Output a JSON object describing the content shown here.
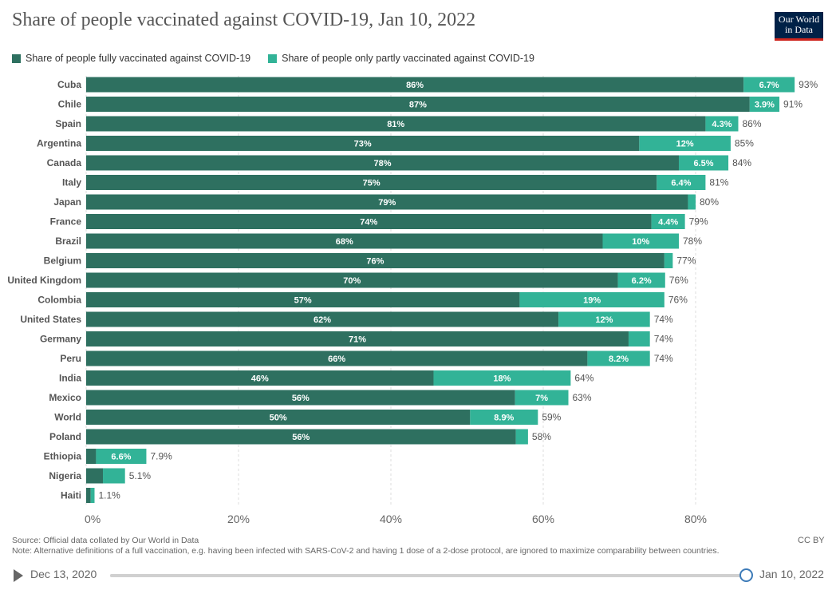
{
  "title": "Share of people vaccinated against COVID-19, Jan 10, 2022",
  "logo": {
    "line1": "Our World",
    "line2": "in Data"
  },
  "colors": {
    "full": "#2e7060",
    "partial": "#32b397",
    "grid": "#dddddd"
  },
  "legend": [
    {
      "label": "Share of people fully vaccinated against COVID-19",
      "color": "#2e7060"
    },
    {
      "label": "Share of people only partly vaccinated against COVID-19",
      "color": "#32b397"
    }
  ],
  "chart_data": {
    "type": "bar",
    "orientation": "horizontal",
    "stacked": true,
    "categories": [
      "Cuba",
      "Chile",
      "Spain",
      "Argentina",
      "Canada",
      "Italy",
      "Japan",
      "France",
      "Brazil",
      "Belgium",
      "United Kingdom",
      "Colombia",
      "United States",
      "Germany",
      "Peru",
      "India",
      "Mexico",
      "World",
      "Poland",
      "Ethiopia",
      "Nigeria",
      "Haiti"
    ],
    "series": [
      {
        "name": "Share of people fully vaccinated against COVID-19",
        "values": [
          86.3,
          87.1,
          81.3,
          72.6,
          77.8,
          74.9,
          79,
          74.2,
          67.8,
          75.9,
          69.8,
          56.9,
          62,
          71.2,
          65.8,
          45.6,
          56.3,
          50.4,
          56.4,
          1.3,
          2.2,
          0.6
        ],
        "labels": [
          "86%",
          "87%",
          "81%",
          "73%",
          "78%",
          "75%",
          "79%",
          "74%",
          "68%",
          "76%",
          "70%",
          "57%",
          "62%",
          "71%",
          "66%",
          "46%",
          "56%",
          "50%",
          "56%",
          "",
          "",
          ""
        ]
      },
      {
        "name": "Share of people only partly vaccinated against COVID-19",
        "values": [
          6.7,
          3.9,
          4.3,
          12,
          6.5,
          6.4,
          1.0,
          4.4,
          10,
          1.1,
          6.2,
          19,
          12,
          2.8,
          8.2,
          18,
          7,
          8.9,
          1.6,
          6.6,
          2.9,
          0.5
        ],
        "labels": [
          "6.7%",
          "3.9%",
          "4.3%",
          "12%",
          "6.5%",
          "6.4%",
          "",
          "4.4%",
          "10%",
          "",
          "6.2%",
          "19%",
          "12%",
          "",
          "8.2%",
          "18%",
          "7%",
          "8.9%",
          "",
          "6.6%",
          "",
          ""
        ]
      }
    ],
    "totals": [
      "93%",
      "91%",
      "86%",
      "85%",
      "84%",
      "81%",
      "80%",
      "79%",
      "78%",
      "77%",
      "76%",
      "76%",
      "74%",
      "74%",
      "74%",
      "64%",
      "63%",
      "59%",
      "58%",
      "7.9%",
      "5.1%",
      "1.1%"
    ],
    "xlim": [
      0,
      93
    ],
    "xticks": [
      0,
      20,
      40,
      60,
      80
    ],
    "xtick_labels": [
      "0%",
      "20%",
      "40%",
      "60%",
      "80%"
    ],
    "grid": true
  },
  "footer": {
    "source": "Source: Official data collated by Our World in Data",
    "note": "Note: Alternative definitions of a full vaccination, e.g. having been infected with SARS-CoV-2 and having 1 dose of a 2-dose protocol, are ignored to maximize comparability between countries.",
    "license": "CC BY"
  },
  "timeline": {
    "start": "Dec 13, 2020",
    "end": "Jan 10, 2022",
    "position": 1.0
  }
}
